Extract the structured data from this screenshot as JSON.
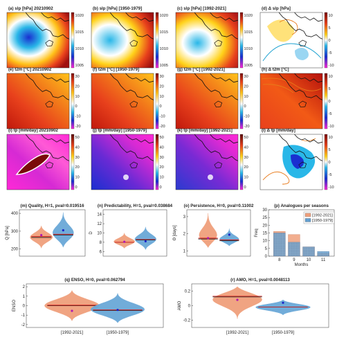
{
  "map_panels": [
    {
      "title": "(a) slp [hPa] 20210902",
      "field": "slp",
      "row": 0,
      "col": 0
    },
    {
      "title": "(b) slp [hPa] [1950-1979]",
      "field": "slp",
      "row": 0,
      "col": 1
    },
    {
      "title": "(c) slp [hPa] [1992-2021]",
      "field": "slp",
      "row": 0,
      "col": 2
    },
    {
      "title": "(d) Δ slp [hPa]",
      "field": "dslp",
      "row": 0,
      "col": 3
    },
    {
      "title": "(e) t2m [°C] 20210902",
      "field": "t2m",
      "row": 1,
      "col": 0
    },
    {
      "title": "(f) t2m [°C] [1950-1979]",
      "field": "t2m",
      "row": 1,
      "col": 1
    },
    {
      "title": "(g) t2m [°C] [1992-2021]",
      "field": "t2m",
      "row": 1,
      "col": 2
    },
    {
      "title": "(h) Δ t2m [°C]",
      "field": "dt2m",
      "row": 1,
      "col": 3
    },
    {
      "title": "(i) tp [mm/day] 20210902",
      "field": "tp",
      "row": 2,
      "col": 0
    },
    {
      "title": "(j) tp [mm/day] [1950-1979]",
      "field": "tp",
      "row": 2,
      "col": 1
    },
    {
      "title": "(k) tp [mm/day] [1992-2021]",
      "field": "tp",
      "row": 2,
      "col": 2
    },
    {
      "title": "(l) Δ tp [mm/day]",
      "field": "dtp",
      "row": 2,
      "col": 3
    }
  ],
  "colorbars": {
    "slp": [
      "1020",
      "1015",
      "1010",
      "1005"
    ],
    "dslp": [
      "10",
      "5",
      "0",
      "-5",
      "-10"
    ],
    "t2m": [
      "30",
      "20",
      "10",
      "0",
      "-10",
      "-20"
    ],
    "dt2m": [
      "10",
      "5",
      "0",
      "-5",
      "-10"
    ],
    "tp": [
      "50",
      "40",
      "30",
      "20",
      "10",
      "0"
    ],
    "dtp": [
      "10",
      "5",
      "0",
      "-5",
      "-10"
    ]
  },
  "chart_data": [
    {
      "type": "violin",
      "title": "(m) Quality, H=1, pval=0.019516",
      "ylabel": "Q [hPa]",
      "yticks": [
        200,
        300,
        400
      ],
      "ylim": [
        160,
        420
      ],
      "groups": [
        {
          "label": "[1992-2021]",
          "color": "#f0a07c",
          "min": 205,
          "max": 330,
          "median": 265,
          "mean": 270,
          "marker": 278
        },
        {
          "label": "[1950-1979]",
          "color": "#6aa8d8",
          "min": 210,
          "max": 405,
          "median": 278,
          "mean": 283,
          "marker": 305
        }
      ]
    },
    {
      "type": "violin",
      "title": "(n) Predictability, H=1, pval=0.038684",
      "ylabel": "D",
      "yticks": [
        6,
        8,
        10,
        12,
        14
      ],
      "ylim": [
        5,
        15
      ],
      "groups": [
        {
          "label": "[1992-2021]",
          "color": "#f0a07c",
          "min": 6.7,
          "max": 10.0,
          "median": 8.0,
          "mean": 8.0,
          "marker": 8.1
        },
        {
          "label": "[1950-1979]",
          "color": "#6aa8d8",
          "min": 6.4,
          "max": 11.3,
          "median": 8.5,
          "mean": 8.6,
          "marker": 8.2
        }
      ]
    },
    {
      "type": "violin",
      "title": "(o) Persistence, H=0, pval=0.11002",
      "ylabel": "Θ [days]",
      "yticks": [
        1,
        2,
        3
      ],
      "ylim": [
        0.7,
        3.4
      ],
      "groups": [
        {
          "label": "[1992-2021]",
          "color": "#f0a07c",
          "min": 1.2,
          "max": 3.2,
          "median": 1.7,
          "mean": 1.75,
          "marker": 1.75
        },
        {
          "label": "[1950-1979]",
          "color": "#6aa8d8",
          "min": 1.3,
          "max": 2.3,
          "median": 1.6,
          "mean": 1.65,
          "marker": 1.95
        }
      ]
    },
    {
      "type": "bar",
      "title": "(p) Analogues per seasons",
      "xlabel": "Months",
      "ylabel": "Freq",
      "categories": [
        "8",
        "9",
        "10",
        "11"
      ],
      "ylim": [
        0,
        30
      ],
      "yticks": [
        0,
        5,
        10,
        15,
        20,
        25,
        30
      ],
      "series": [
        {
          "name": "[1992-2021]",
          "color": "#f0a07c",
          "values": [
            16,
            14,
            6,
            2
          ]
        },
        {
          "name": "[1950-1979]",
          "color": "#6aa8d8",
          "values": [
            15,
            9,
            6,
            3
          ]
        }
      ]
    },
    {
      "type": "violin",
      "title": "(q) ENSO, H=0, pval=0.062794",
      "ylabel": "ENSO",
      "yticks": [
        -2,
        -1,
        0,
        1,
        2
      ],
      "ylim": [
        -2.3,
        2.3
      ],
      "groups": [
        {
          "label": "[1992-2021]",
          "color": "#f0a07c",
          "min": -1.6,
          "max": 1.6,
          "median": 0.0,
          "mean": 0.05,
          "marker": -0.55
        },
        {
          "label": "[1950-1979]",
          "color": "#6aa8d8",
          "min": -1.8,
          "max": 1.3,
          "median": -0.5,
          "mean": -0.45,
          "marker": -0.45
        }
      ]
    },
    {
      "type": "violin",
      "title": "(r) AMO, H=1, pval=0.0048113",
      "ylabel": "AMO",
      "yticks": [
        -0.2,
        0,
        0.2
      ],
      "ylim": [
        -0.3,
        0.3
      ],
      "groups": [
        {
          "label": "[1992-2021]",
          "color": "#f0a07c",
          "min": -0.18,
          "max": 0.26,
          "median": 0.12,
          "mean": 0.13,
          "marker": 0.08
        },
        {
          "label": "[1950-1979]",
          "color": "#6aa8d8",
          "min": -0.13,
          "max": 0.08,
          "median": -0.02,
          "mean": -0.02,
          "marker": 0.04
        }
      ]
    }
  ]
}
